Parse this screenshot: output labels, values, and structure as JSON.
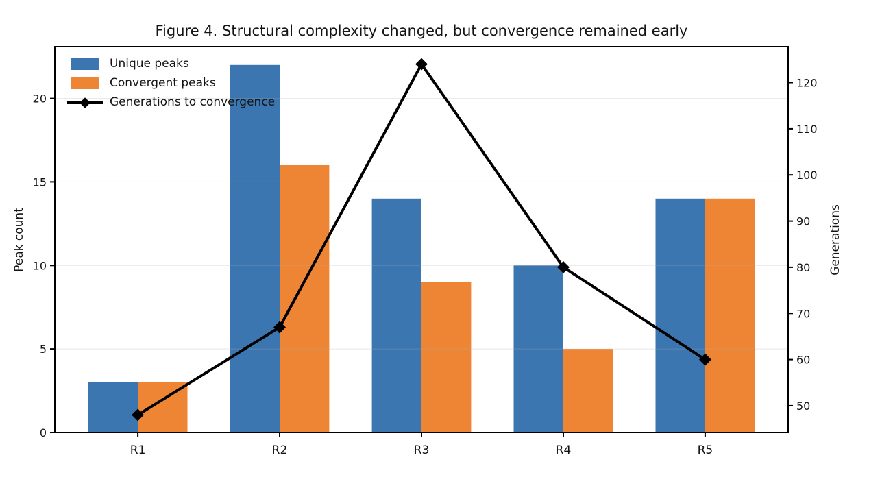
{
  "chart_data": {
    "type": "bar",
    "combo": "grouped-bars-with-line-overlay",
    "title": "Figure 4. Structural complexity changed, but convergence remained early",
    "categories": [
      "R1",
      "R2",
      "R3",
      "R4",
      "R5"
    ],
    "series": [
      {
        "name": "Unique peaks",
        "type": "bar",
        "axis": "left",
        "color": "#3b76b0",
        "values": [
          3,
          22,
          14,
          10,
          14
        ]
      },
      {
        "name": "Convergent peaks",
        "type": "bar",
        "axis": "left",
        "color": "#ee8535",
        "values": [
          3,
          16,
          9,
          5,
          14
        ]
      },
      {
        "name": "Generations to convergence",
        "type": "line",
        "axis": "right",
        "color": "#000000",
        "marker": "diamond",
        "values": [
          48,
          67,
          124,
          80,
          60
        ]
      }
    ],
    "left_axis": {
      "label": "Peak count",
      "ticks": [
        0,
        5,
        10,
        15,
        20
      ],
      "lim": [
        0,
        23.1
      ]
    },
    "right_axis": {
      "label": "Generations",
      "ticks": [
        50,
        60,
        70,
        80,
        90,
        100,
        110,
        120
      ],
      "lim": [
        44.2,
        127.8
      ]
    },
    "legend": {
      "position": "upper-left",
      "frame": false
    },
    "grid": {
      "horizontal": true,
      "color": "#b0b0b0",
      "opacity": 0.3
    },
    "styles": {
      "spine_color": "#000000",
      "text_color": "#141414",
      "background": "#ffffff"
    }
  }
}
